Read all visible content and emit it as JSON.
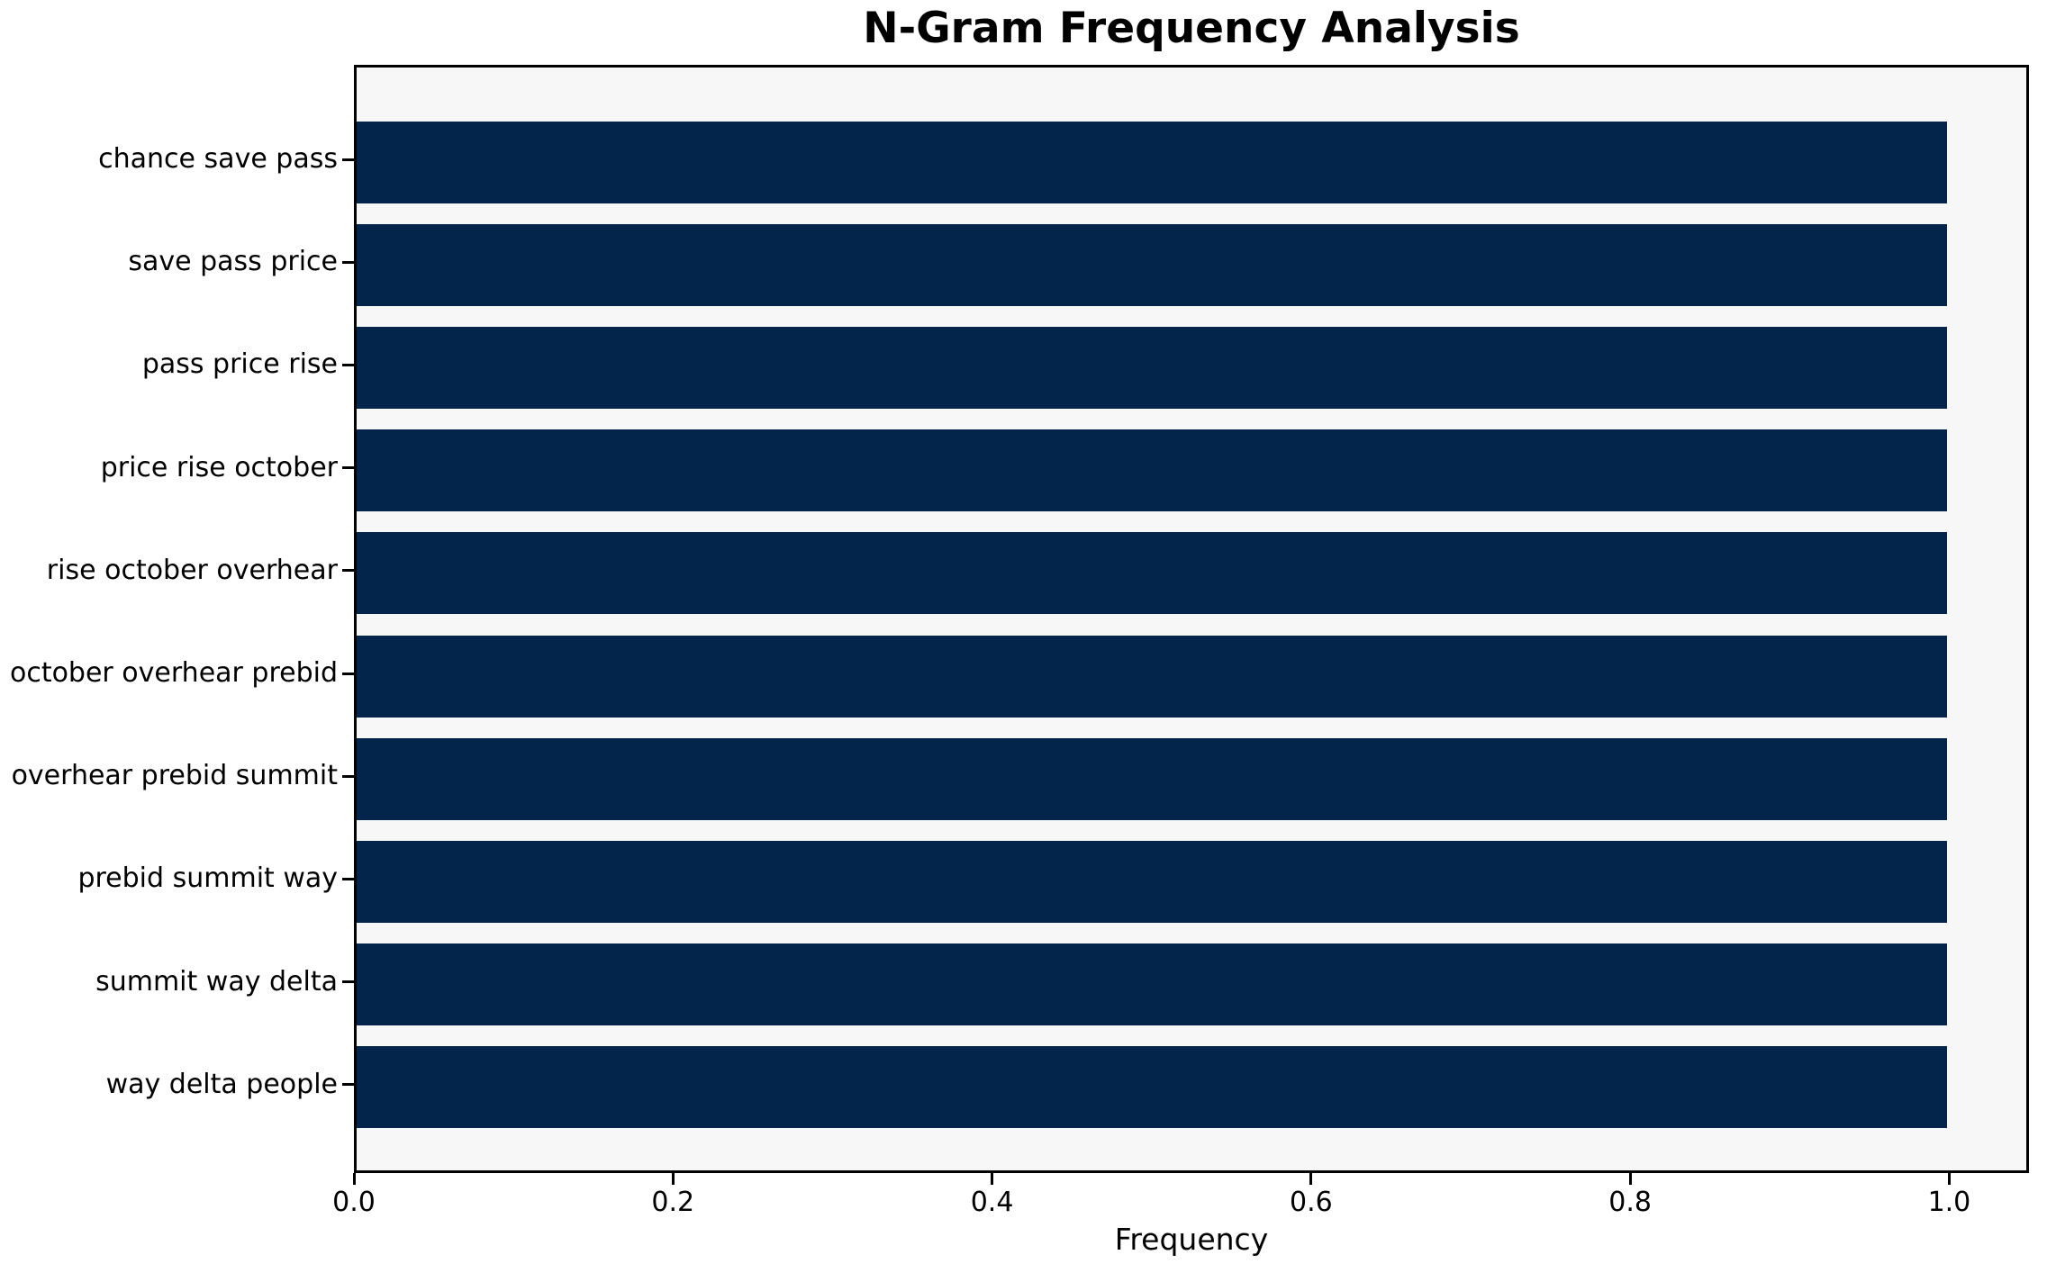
{
  "chart_data": {
    "type": "bar",
    "orientation": "horizontal",
    "title": "N-Gram Frequency Analysis",
    "xlabel": "Frequency",
    "ylabel": "",
    "categories": [
      "chance save pass",
      "save pass price",
      "pass price rise",
      "price rise october",
      "rise october overhear",
      "october overhear prebid",
      "overhear prebid summit",
      "prebid summit way",
      "summit way delta",
      "way delta people"
    ],
    "values": [
      1.0,
      1.0,
      1.0,
      1.0,
      1.0,
      1.0,
      1.0,
      1.0,
      1.0,
      1.0
    ],
    "x_ticks": [
      "0.0",
      "0.2",
      "0.4",
      "0.6",
      "0.8",
      "1.0"
    ],
    "x_tick_values": [
      0.0,
      0.2,
      0.4,
      0.6,
      0.8,
      1.0
    ],
    "xlim": [
      0,
      1.05
    ],
    "grid": false,
    "legend": false,
    "colors": {
      "bar": "#03254c",
      "plot_background": "#f7f7f7",
      "figure_background": "#ffffff",
      "axis": "#000000",
      "text": "#000000"
    }
  }
}
